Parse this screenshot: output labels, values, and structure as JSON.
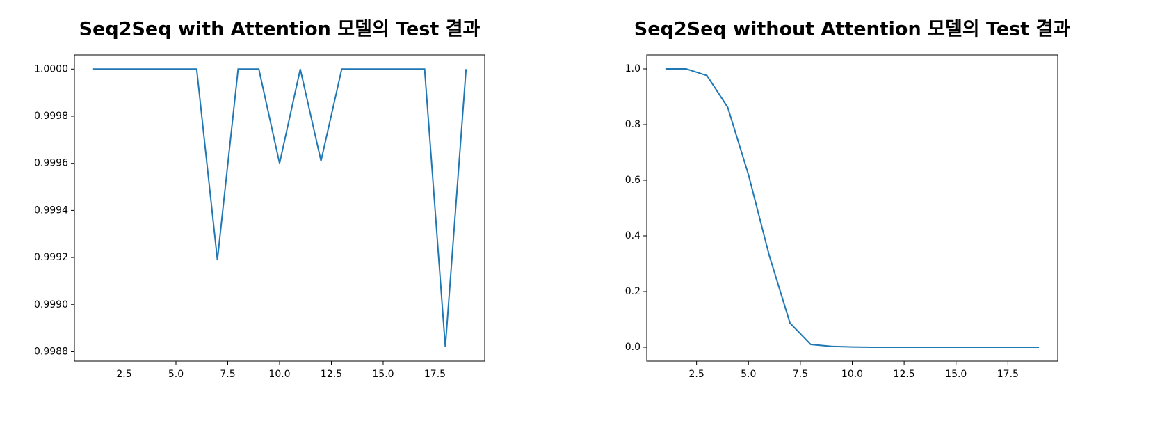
{
  "chart_data": [
    {
      "type": "line",
      "title": "Seq2Seq with Attention 모델의 Test 결과",
      "x": [
        1,
        2,
        3,
        4,
        5,
        6,
        7,
        8,
        9,
        10,
        11,
        12,
        13,
        14,
        15,
        16,
        17,
        18,
        19
      ],
      "series": [
        {
          "color": "#1f77b4",
          "values": [
            1,
            1,
            1,
            1,
            1,
            1,
            0.99919,
            1,
            1,
            0.9996,
            1,
            0.99961,
            1,
            1,
            1,
            1,
            1,
            0.99882,
            1
          ]
        }
      ],
      "xlim": [
        0.1,
        19.9
      ],
      "ylim": [
        0.99876,
        1.00006
      ],
      "xticks": [
        2.5,
        {
          "value": 5,
          "label": "5.0"
        },
        7.5,
        {
          "value": 10,
          "label": "10.0"
        },
        12.5,
        {
          "value": 15,
          "label": "15.0"
        },
        17.5
      ],
      "yticks": [
        0.9988,
        {
          "value": 0.999,
          "label": "0.9990"
        },
        0.9992,
        0.9994,
        0.9996,
        0.9998,
        {
          "value": 1,
          "label": "1.0000"
        }
      ],
      "grid": false
    },
    {
      "type": "line",
      "title": "Seq2Seq without Attention 모델의 Test 결과",
      "x": [
        1,
        2,
        3,
        4,
        5,
        6,
        7,
        8,
        9,
        10,
        11,
        12,
        13,
        14,
        15,
        16,
        17,
        18,
        19
      ],
      "series": [
        {
          "color": "#1f77b4",
          "values": [
            1,
            1,
            0.976,
            0.862,
            0.62,
            0.33,
            0.087,
            0.01,
            0.003,
            0.001,
            0,
            0,
            0,
            0,
            0,
            0,
            0,
            0,
            0
          ]
        }
      ],
      "xlim": [
        0.1,
        19.9
      ],
      "ylim": [
        -0.05,
        1.05
      ],
      "xticks": [
        2.5,
        {
          "value": 5,
          "label": "5.0"
        },
        7.5,
        {
          "value": 10,
          "label": "10.0"
        },
        12.5,
        {
          "value": 15,
          "label": "15.0"
        },
        17.5
      ],
      "yticks": [
        {
          "value": 0,
          "label": "0.0"
        },
        0.2,
        0.4,
        0.6,
        0.8,
        {
          "value": 1,
          "label": "1.0"
        }
      ],
      "grid": false
    }
  ]
}
